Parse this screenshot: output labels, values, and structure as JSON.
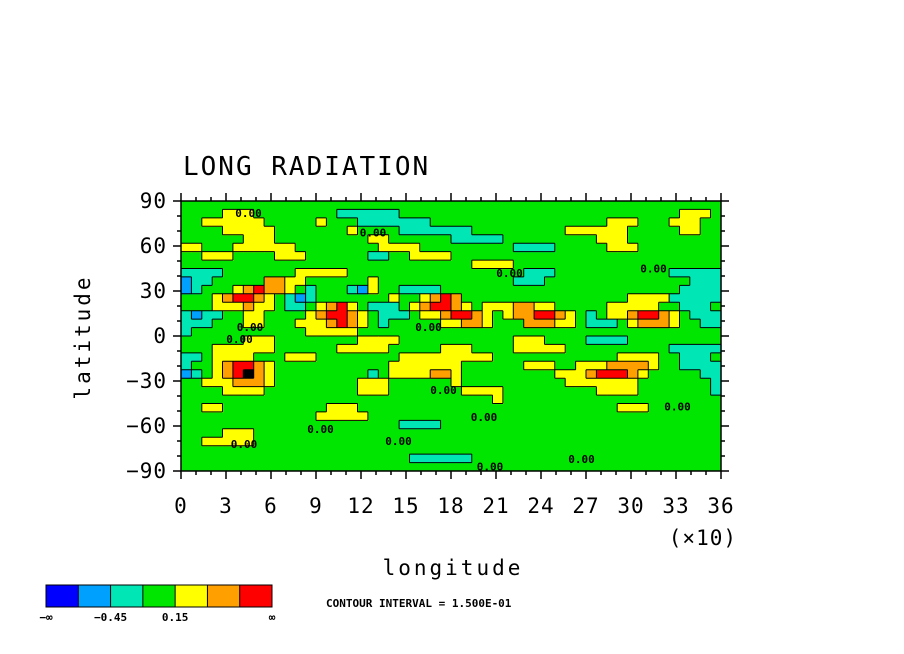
{
  "chart_data": {
    "type": "heatmap",
    "title": "LONG RADIATION",
    "xlabel": "longitude",
    "ylabel": "latitude",
    "x_multiplier_label": "(×10)",
    "xlim": [
      0,
      36
    ],
    "ylim": [
      -90,
      90
    ],
    "x_ticks": [
      "0",
      "3",
      "6",
      "9",
      "12",
      "15",
      "18",
      "21",
      "24",
      "27",
      "30",
      "33",
      "36"
    ],
    "y_ticks": [
      "90",
      "60",
      "30",
      "0",
      "−30",
      "−60",
      "−90"
    ],
    "contour_interval_text": "CONTOUR INTERVAL = 1.500E-01",
    "contour_labels": [
      {
        "x": 4.5,
        "y": 82,
        "text": "0.00"
      },
      {
        "x": 12.8,
        "y": 69,
        "text": "0.00"
      },
      {
        "x": 21.9,
        "y": 42,
        "text": "0.00"
      },
      {
        "x": 31.5,
        "y": 45,
        "text": "0.00"
      },
      {
        "x": 4.6,
        "y": 6,
        "text": "0.00"
      },
      {
        "x": 3.9,
        "y": -2,
        "text": "0.00"
      },
      {
        "x": 16.5,
        "y": 6,
        "text": "0.00"
      },
      {
        "x": 17.5,
        "y": -36,
        "text": "0.00"
      },
      {
        "x": 20.2,
        "y": -54,
        "text": "0.00"
      },
      {
        "x": 9.3,
        "y": -62,
        "text": "0.00"
      },
      {
        "x": 14.5,
        "y": -70,
        "text": "0.00"
      },
      {
        "x": 4.2,
        "y": -72,
        "text": "0.00"
      },
      {
        "x": 20.6,
        "y": -87,
        "text": "0.00"
      },
      {
        "x": 26.7,
        "y": -82,
        "text": "0.00"
      },
      {
        "x": 33.1,
        "y": -47,
        "text": "0.00"
      }
    ],
    "colorbar": {
      "colors": [
        "#0000ff",
        "#00a0ff",
        "#00e6b4",
        "#00e600",
        "#ffff00",
        "#ffa000",
        "#ff0000"
      ],
      "labels": [
        {
          "boundary": 0,
          "text": "−∞"
        },
        {
          "boundary": 2,
          "text": "−0.45"
        },
        {
          "boundary": 4,
          "text": "0.15"
        },
        {
          "boundary": 7,
          "text": "∞"
        }
      ]
    },
    "field_levels": [
      "3333333333333333333333333333333333333333333333333333",
      "3333444333333332222223333333333333333333333333334443",
      "3344444433333433322222223333333333333333344433344433",
      "3333444443333333433332222222333333333444444333334433",
      "3333334443333333334433333322222333333333444333333333",
      "4433344444433333333444433333333322223333344433333333",
      "3344433334443333332233444433333333333333333333333333",
      "3333333333333333333333333333444433333333333333333333",
      "2222333333344444333333333333333332223333333333322222",
      "1223333355443333334333333333333322233333333333333222",
      "1233345655432333214332222333333333333333333333332222",
      "3334566543212333333343345653333333333333333444422222",
      "3334445443223456432223456654344455443333344444332223",
      "2122334433334566543222344566543455665432344566543222",
      "2223334433344456543233333445543335554432223455543322",
      "2333333333334444433333333333333333333333333333333333",
      "3333334443333333344443333333333344433332222333333333",
      "3334444443333334444433333444333344444333333333322222",
      "2234444333444333333334444444443333333333334444332223",
      "2334566543333333333344444443333334443344455554332222",
      "1234567543333333332344445543333333334445666543333322",
      "3344455543333333344433333343333333333444444433333332",
      "3333444433333333344433333334444333333333444433333332",
      "3333333333333333333333333333334333333333333333333333",
      "3344333333333344433333333333333333333333334443333333",
      "3333333333333444443333333333333333333333333333333333",
      "3333333333333333333332222333333333333333333333333333",
      "3333444333333333333333333333333333333333333333333333",
      "3344444333333333333333333333333333333333333333333333",
      "3333333333333333333333333333333333333333333333333333",
      "3333333333333333333333222222333333333333333333333333",
      "3333333333333333333333333333333333333333333333333333"
    ]
  }
}
